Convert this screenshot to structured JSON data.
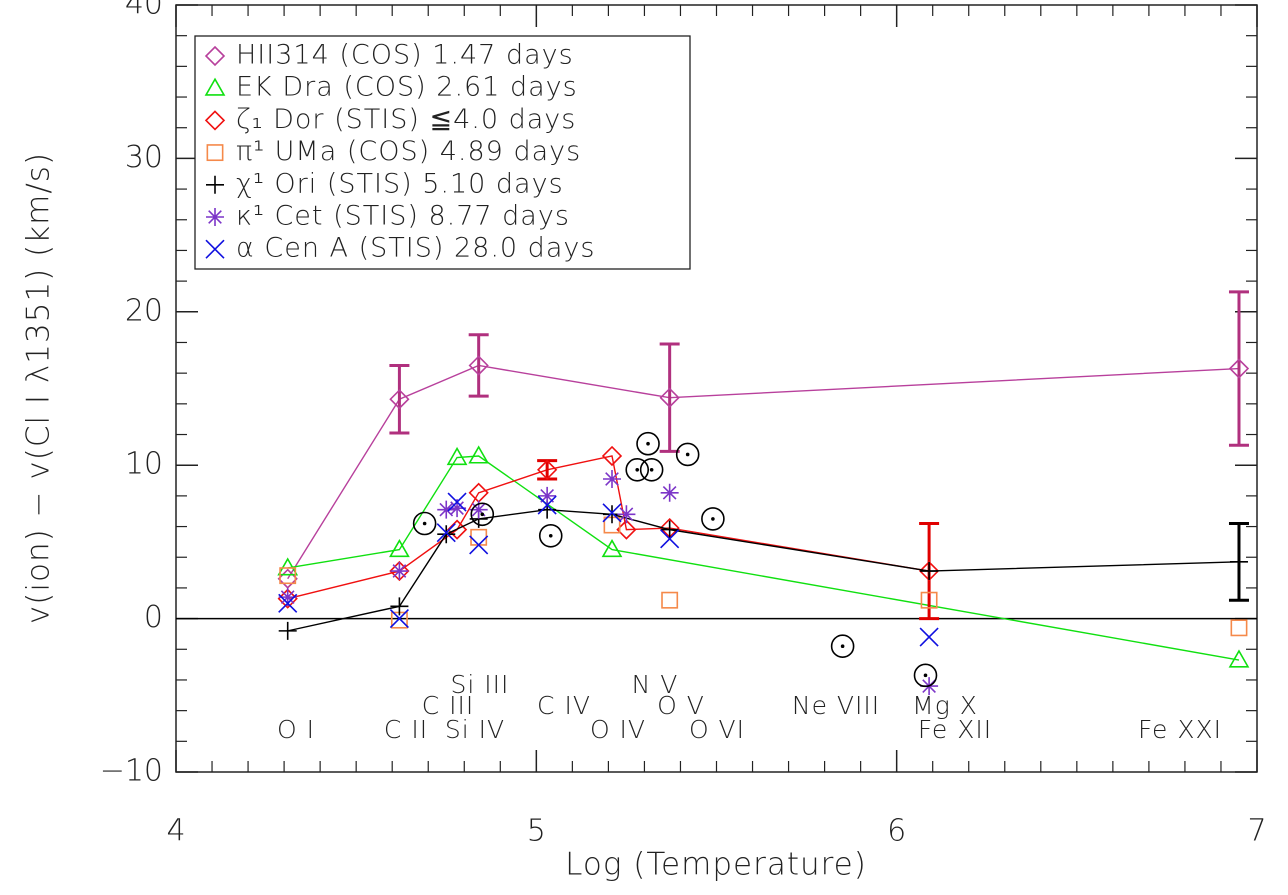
{
  "chart_data": {
    "type": "scatter",
    "x_label": "Log (Temperature)",
    "y_label": "v(ion) − v(Cl I λ1351) (km/s)",
    "xlim": [
      4,
      7
    ],
    "xticks": [
      4,
      5,
      6,
      7
    ],
    "xticks_minor": [
      4.1,
      4.2,
      4.3,
      4.4,
      4.5,
      4.6,
      4.7,
      4.8,
      4.9,
      5.1,
      5.2,
      5.3,
      5.4,
      5.5,
      5.6,
      5.7,
      5.8,
      5.9,
      6.1,
      6.2,
      6.3,
      6.4,
      6.5,
      6.6,
      6.7,
      6.8,
      6.9
    ],
    "ylim": [
      -10,
      40
    ],
    "yticks": [
      {
        "value": -10,
        "label": "−10"
      },
      0,
      10,
      20,
      30,
      40
    ],
    "yticks_minor": [
      -8,
      -6,
      -4,
      -2,
      2,
      4,
      6,
      8,
      12,
      14,
      16,
      18,
      22,
      24,
      26,
      28,
      32,
      34,
      36,
      38
    ],
    "hline": 0,
    "legend": "upper left",
    "series": [
      {
        "name": "HII314 (COS) 1.47 days",
        "color": "#b8409c",
        "marker": "diamond",
        "line": true,
        "x": [
          4.31,
          4.62,
          4.84,
          5.37,
          6.95
        ],
        "values": [
          2.6,
          14.3,
          16.5,
          14.4,
          16.3
        ],
        "errors": [
          null,
          2.2,
          2.0,
          3.5,
          5.0
        ],
        "error_color": "#b0307e"
      },
      {
        "name": "EK Dra (COS) 2.61 days",
        "color": "#10e010",
        "marker": "triangle",
        "line": true,
        "x": [
          4.31,
          4.62,
          4.78,
          4.84,
          5.21,
          6.95
        ],
        "values": [
          3.3,
          4.5,
          10.5,
          10.6,
          4.5,
          -2.7
        ]
      },
      {
        "name": "ζ₁ Dor (STIS) ≦4.0 days",
        "color": "#f01010",
        "marker": "diamond",
        "line": true,
        "x": [
          4.31,
          4.62,
          4.78,
          4.84,
          5.03,
          5.21,
          5.25,
          5.37,
          6.09
        ],
        "values": [
          1.3,
          3.1,
          5.8,
          8.2,
          9.7,
          10.6,
          5.8,
          5.9,
          3.1
        ],
        "errors": [
          null,
          null,
          null,
          null,
          0.6,
          null,
          null,
          null,
          3.1
        ],
        "error_color": "#e00000"
      },
      {
        "name": "π¹ UMa (COS) 4.89 days",
        "color": "#f5894a",
        "marker": "square",
        "line": false,
        "x": [
          4.31,
          4.62,
          4.84,
          5.21,
          5.37,
          6.09,
          6.95
        ],
        "values": [
          2.8,
          -0.1,
          5.3,
          6.1,
          1.2,
          1.2,
          -0.6
        ]
      },
      {
        "name": "χ¹ Ori (STIS) 5.10 days",
        "color": "#000000",
        "marker": "plus",
        "line": true,
        "x": [
          4.31,
          4.62,
          4.75,
          4.84,
          5.03,
          5.21,
          5.37,
          6.09,
          6.95
        ],
        "values": [
          -0.8,
          0.8,
          5.5,
          6.5,
          7.1,
          6.8,
          5.8,
          3.1,
          3.7
        ],
        "errors": [
          null,
          null,
          null,
          null,
          null,
          null,
          null,
          null,
          2.5
        ],
        "error_color": "#000000"
      },
      {
        "name": "κ¹  Cet (STIS) 8.77 days",
        "color": "#7c35c8",
        "marker": "asterisk",
        "line": false,
        "x": [
          4.31,
          4.62,
          4.75,
          4.78,
          4.84,
          5.03,
          5.21,
          5.25,
          5.37,
          6.09
        ],
        "values": [
          1.4,
          3.1,
          7.1,
          7.2,
          7.1,
          8.0,
          9.1,
          6.8,
          8.2,
          -4.4
        ]
      },
      {
        "name": "α Cen A (STIS) 28.0 days",
        "color": "#1010e0",
        "marker": "x",
        "line": false,
        "x": [
          4.31,
          4.62,
          4.75,
          4.78,
          4.84,
          5.03,
          5.21,
          5.37,
          6.09
        ],
        "values": [
          1.0,
          0.0,
          5.6,
          7.6,
          4.8,
          7.4,
          6.9,
          5.2,
          -1.2
        ]
      },
      {
        "color": "#000000",
        "marker": "sun",
        "line": false,
        "x": [
          4.69,
          4.85,
          5.04,
          5.28,
          5.31,
          5.32,
          5.42,
          5.49,
          5.85,
          6.08
        ],
        "values": [
          6.2,
          6.8,
          5.4,
          9.7,
          11.4,
          9.7,
          10.7,
          6.5,
          -1.8,
          -3.7
        ]
      }
    ],
    "annotations": [
      "Si III",
      "C III",
      "C IV",
      "N V",
      "O V",
      "Ne VIII",
      "Mg X",
      "O I",
      "C II",
      "Si IV",
      "O IV",
      "O VI",
      "Fe XII",
      "Fe XXI"
    ]
  }
}
